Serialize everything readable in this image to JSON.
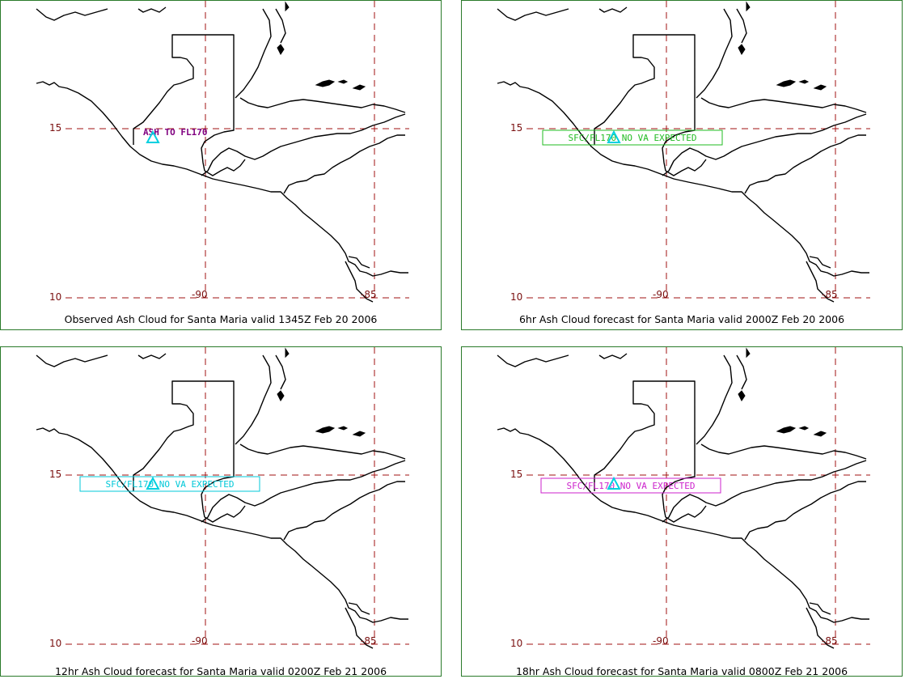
{
  "panels": [
    {
      "caption": "Observed Ash Cloud for Santa  Maria valid 1345Z Feb 20 2006",
      "ash_label": "ASH TO FL170",
      "ash_color": "#800080",
      "ash_box": false
    },
    {
      "caption": "6hr Ash Cloud forecast for Santa  Maria valid 2000Z Feb 20 2006",
      "ash_label": "SFC/FL170 NO VA EXPECTED",
      "ash_color": "#22bb22",
      "ash_box": true
    },
    {
      "caption": "12hr Ash Cloud forecast for Santa  Maria valid 0200Z Feb 21 2006",
      "ash_label": "SFC/FL170 NO VA EXPECTED",
      "ash_color": "#00c8d8",
      "ash_box": true
    },
    {
      "caption": "18hr Ash Cloud forecast for Santa  Maria valid 0800Z Feb 21 2006",
      "ash_label": "SFC/FL170 NO VA EXPECTED",
      "ash_color": "#cc22cc",
      "ash_box": true
    }
  ],
  "grid": {
    "lat_labels": [
      "15",
      "10"
    ],
    "lon_labels": [
      "-90",
      "-85"
    ],
    "grid_color": "#a01010"
  },
  "volcano": {
    "marker": "triangle",
    "color": "#00d0e0"
  }
}
